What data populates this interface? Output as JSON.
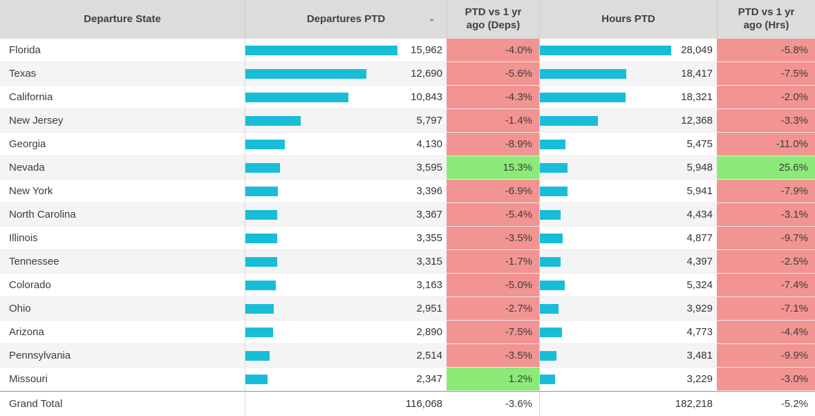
{
  "colors": {
    "bar_cyan": "#18BDD8",
    "negative_bg": "#F29492",
    "positive_bg": "#8CEB78",
    "header_bg": "#dcdcdc"
  },
  "header": {
    "col_state": "Departure State",
    "col_departures": "Departures PTD",
    "col_deps_change": "PTD vs 1 yr ago (Deps)",
    "col_hours": "Hours PTD",
    "col_hrs_change": "PTD vs 1 yr ago (Hrs)",
    "sort_icon": "chevron-down",
    "sort_glyph": "⌄"
  },
  "chart_data": {
    "type": "table",
    "title": "Departures and Hours PTD by Departure State",
    "categories": [
      "Florida",
      "Texas",
      "California",
      "New Jersey",
      "Georgia",
      "Nevada",
      "New York",
      "North Carolina",
      "Illinois",
      "Tennessee",
      "Colorado",
      "Ohio",
      "Arizona",
      "Pennsylvania",
      "Missouri"
    ],
    "series": [
      {
        "name": "Departures PTD",
        "display": "bar+value",
        "values": [
          15962,
          12690,
          10843,
          5797,
          4130,
          3595,
          3396,
          3367,
          3355,
          3315,
          3163,
          2951,
          2890,
          2514,
          2347
        ]
      },
      {
        "name": "PTD vs 1 yr ago (Deps)",
        "display": "conditional-cell",
        "unit": "%",
        "values": [
          -4.0,
          -5.6,
          -4.3,
          -1.4,
          -8.9,
          15.3,
          -6.9,
          -5.4,
          -3.5,
          -1.7,
          -5.0,
          -2.7,
          -7.5,
          -3.5,
          1.2
        ]
      },
      {
        "name": "Hours PTD",
        "display": "bar+value",
        "values": [
          28049,
          18417,
          18321,
          12368,
          5475,
          5948,
          5941,
          4434,
          4877,
          4397,
          5324,
          3929,
          4773,
          3481,
          3229
        ]
      },
      {
        "name": "PTD vs 1 yr ago (Hrs)",
        "display": "conditional-cell",
        "unit": "%",
        "values": [
          -5.8,
          -7.5,
          -2.0,
          -3.3,
          -11.0,
          25.6,
          -7.9,
          -3.1,
          -9.7,
          -2.5,
          -7.4,
          -7.1,
          -4.4,
          -9.9,
          -3.0
        ]
      }
    ],
    "grand_total": {
      "departures_ptd": 116068,
      "deps_vs_pct": -3.6,
      "hours_ptd": 182218,
      "hrs_vs_pct": -5.2
    },
    "legend_position": "none",
    "grid": false
  },
  "rows": [
    {
      "state": "Florida",
      "departures": 15962,
      "departures_display": "15,962",
      "deps_change": "-4.0%",
      "deps_positive": false,
      "hours": 28049,
      "hours_display": "28,049",
      "hrs_change": "-5.8%",
      "hrs_positive": false
    },
    {
      "state": "Texas",
      "departures": 12690,
      "departures_display": "12,690",
      "deps_change": "-5.6%",
      "deps_positive": false,
      "hours": 18417,
      "hours_display": "18,417",
      "hrs_change": "-7.5%",
      "hrs_positive": false
    },
    {
      "state": "California",
      "departures": 10843,
      "departures_display": "10,843",
      "deps_change": "-4.3%",
      "deps_positive": false,
      "hours": 18321,
      "hours_display": "18,321",
      "hrs_change": "-2.0%",
      "hrs_positive": false
    },
    {
      "state": "New Jersey",
      "departures": 5797,
      "departures_display": "5,797",
      "deps_change": "-1.4%",
      "deps_positive": false,
      "hours": 12368,
      "hours_display": "12,368",
      "hrs_change": "-3.3%",
      "hrs_positive": false
    },
    {
      "state": "Georgia",
      "departures": 4130,
      "departures_display": "4,130",
      "deps_change": "-8.9%",
      "deps_positive": false,
      "hours": 5475,
      "hours_display": "5,475",
      "hrs_change": "-11.0%",
      "hrs_positive": false
    },
    {
      "state": "Nevada",
      "departures": 3595,
      "departures_display": "3,595",
      "deps_change": "15.3%",
      "deps_positive": true,
      "hours": 5948,
      "hours_display": "5,948",
      "hrs_change": "25.6%",
      "hrs_positive": true
    },
    {
      "state": "New York",
      "departures": 3396,
      "departures_display": "3,396",
      "deps_change": "-6.9%",
      "deps_positive": false,
      "hours": 5941,
      "hours_display": "5,941",
      "hrs_change": "-7.9%",
      "hrs_positive": false
    },
    {
      "state": "North Carolina",
      "departures": 3367,
      "departures_display": "3,367",
      "deps_change": "-5.4%",
      "deps_positive": false,
      "hours": 4434,
      "hours_display": "4,434",
      "hrs_change": "-3.1%",
      "hrs_positive": false
    },
    {
      "state": "Illinois",
      "departures": 3355,
      "departures_display": "3,355",
      "deps_change": "-3.5%",
      "deps_positive": false,
      "hours": 4877,
      "hours_display": "4,877",
      "hrs_change": "-9.7%",
      "hrs_positive": false
    },
    {
      "state": "Tennessee",
      "departures": 3315,
      "departures_display": "3,315",
      "deps_change": "-1.7%",
      "deps_positive": false,
      "hours": 4397,
      "hours_display": "4,397",
      "hrs_change": "-2.5%",
      "hrs_positive": false
    },
    {
      "state": "Colorado",
      "departures": 3163,
      "departures_display": "3,163",
      "deps_change": "-5.0%",
      "deps_positive": false,
      "hours": 5324,
      "hours_display": "5,324",
      "hrs_change": "-7.4%",
      "hrs_positive": false
    },
    {
      "state": "Ohio",
      "departures": 2951,
      "departures_display": "2,951",
      "deps_change": "-2.7%",
      "deps_positive": false,
      "hours": 3929,
      "hours_display": "3,929",
      "hrs_change": "-7.1%",
      "hrs_positive": false
    },
    {
      "state": "Arizona",
      "departures": 2890,
      "departures_display": "2,890",
      "deps_change": "-7.5%",
      "deps_positive": false,
      "hours": 4773,
      "hours_display": "4,773",
      "hrs_change": "-4.4%",
      "hrs_positive": false
    },
    {
      "state": "Pennsylvania",
      "departures": 2514,
      "departures_display": "2,514",
      "deps_change": "-3.5%",
      "deps_positive": false,
      "hours": 3481,
      "hours_display": "3,481",
      "hrs_change": "-9.9%",
      "hrs_positive": false
    },
    {
      "state": "Missouri",
      "departures": 2347,
      "departures_display": "2,347",
      "deps_change": "1.2%",
      "deps_positive": true,
      "hours": 3229,
      "hours_display": "3,229",
      "hrs_change": "-3.0%",
      "hrs_positive": false
    }
  ],
  "grand_total": {
    "label": "Grand Total",
    "departures_display": "116,068",
    "deps_change": "-3.6%",
    "hours_display": "182,218",
    "hrs_change": "-5.2%"
  }
}
